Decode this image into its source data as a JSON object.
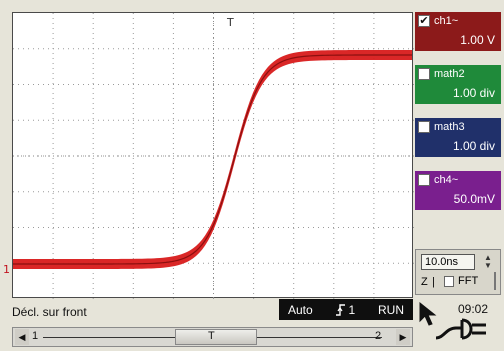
{
  "plot": {
    "trigger_top_marker": "T",
    "channel_marker": "1",
    "trigger_level_marker": "T",
    "grid": {
      "divisions_x": 10,
      "divisions_y": 8
    },
    "waveform_color": "#d81b1b"
  },
  "channels": [
    {
      "id": "ch1",
      "label": "ch1~",
      "value": "1.00  V",
      "checked": true,
      "color": "#8c1a1a"
    },
    {
      "id": "math2",
      "label": "math2",
      "value": "1.00  div",
      "checked": false,
      "color": "#1f8a3a"
    },
    {
      "id": "math3",
      "label": "math3",
      "value": "1.00  div",
      "checked": false,
      "color": "#20306a"
    },
    {
      "id": "ch4",
      "label": "ch4~",
      "value": "50.0mV",
      "checked": false,
      "color": "#7a1f8e"
    }
  ],
  "checkmark": "✔",
  "timebase": {
    "value": "10.0ns",
    "zoom_label": "Z",
    "zoom_sep": "|",
    "fft_label": "FFT",
    "fft_checked": false
  },
  "status": {
    "trigger_text": "Décl. sur front",
    "mode": "Auto",
    "trigger_source": "1",
    "state": "RUN"
  },
  "scrollbar": {
    "marker_1": "1",
    "marker_T": "T",
    "marker_2": "2"
  },
  "clock": "09:02",
  "icons": {
    "pointer": "mouse-pointer-icon",
    "power": "ac-power-plug-icon",
    "edge": "rising-edge-icon"
  }
}
